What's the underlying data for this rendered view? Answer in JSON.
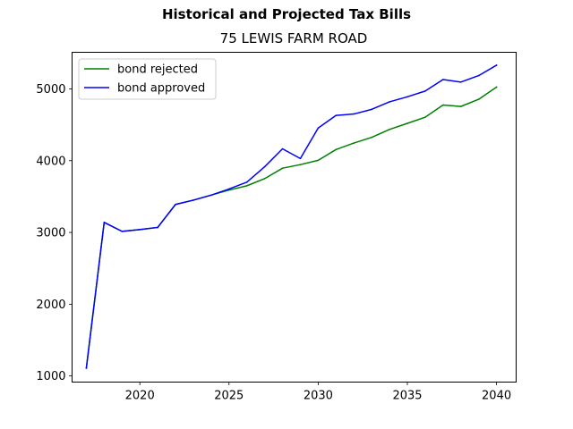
{
  "figure": {
    "suptitle": "Historical and Projected Tax Bills",
    "title": "75 LEWIS FARM ROAD"
  },
  "chart_data": {
    "type": "line",
    "title": "75 LEWIS FARM ROAD",
    "suptitle": "Historical and Projected Tax Bills",
    "xlabel": "",
    "ylabel": "",
    "xlim": [
      2016.2,
      2041.1
    ],
    "ylim": [
      915,
      5510
    ],
    "xticks": [
      2020,
      2025,
      2030,
      2035,
      2040
    ],
    "yticks": [
      1000,
      2000,
      3000,
      4000,
      5000
    ],
    "grid": false,
    "legend_position": "top-left",
    "x": [
      2017,
      2018,
      2019,
      2020,
      2021,
      2022,
      2023,
      2024,
      2025,
      2026,
      2027,
      2028,
      2029,
      2030,
      2031,
      2032,
      2033,
      2034,
      2035,
      2036,
      2037,
      2038,
      2039,
      2040
    ],
    "series": [
      {
        "name": "bond rejected",
        "color": "#008000",
        "values": [
          1110,
          3140,
          3015,
          3040,
          3070,
          3390,
          3450,
          3520,
          3590,
          3650,
          3750,
          3895,
          3945,
          4005,
          4155,
          4245,
          4325,
          4435,
          4520,
          4605,
          4775,
          4755,
          4855,
          5025
        ]
      },
      {
        "name": "bond approved",
        "color": "#0000ff",
        "values": [
          1110,
          3140,
          3015,
          3040,
          3070,
          3390,
          3450,
          3520,
          3605,
          3700,
          3915,
          4165,
          4030,
          4455,
          4630,
          4650,
          4715,
          4820,
          4890,
          4970,
          5130,
          5095,
          5185,
          5330
        ]
      }
    ]
  }
}
